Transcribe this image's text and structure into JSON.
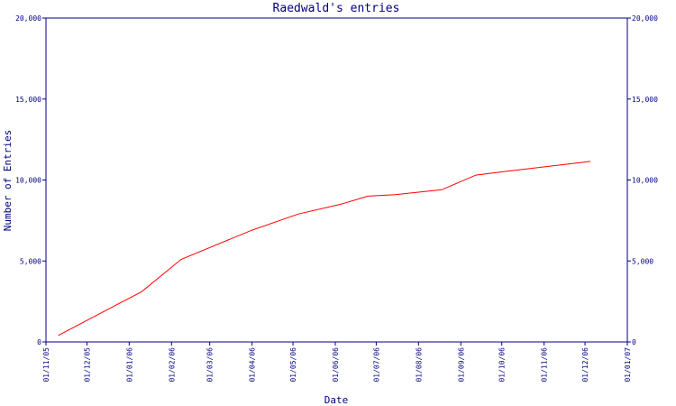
{
  "chart_data": {
    "type": "line",
    "title": "Raedwald's entries",
    "xlabel": "Date",
    "ylabel": "Number of Entries",
    "x_tick_labels": [
      "01/11/05",
      "01/12/05",
      "01/01/06",
      "01/02/06",
      "01/03/06",
      "01/04/06",
      "01/05/06",
      "01/06/06",
      "01/07/06",
      "01/08/06",
      "01/09/06",
      "01/10/06",
      "01/11/06",
      "01/12/06",
      "01/01/07"
    ],
    "y_tick_labels": [
      "0",
      "5,000",
      "10,000",
      "15,000",
      "20,000"
    ],
    "ylim": [
      0,
      20000
    ],
    "xlim": [
      "2005-11-01",
      "2007-01-01"
    ],
    "grid": false,
    "right_axis": true,
    "series": [
      {
        "color": "#ff0000",
        "points": [
          {
            "x": "2005-11-10",
            "y": 400
          },
          {
            "x": "2006-01-10",
            "y": 3100
          },
          {
            "x": "2006-02-08",
            "y": 5100
          },
          {
            "x": "2006-04-01",
            "y": 6900
          },
          {
            "x": "2006-05-05",
            "y": 7900
          },
          {
            "x": "2006-06-05",
            "y": 8500
          },
          {
            "x": "2006-06-25",
            "y": 9000
          },
          {
            "x": "2006-07-15",
            "y": 9100
          },
          {
            "x": "2006-08-18",
            "y": 9400
          },
          {
            "x": "2006-09-12",
            "y": 10300
          },
          {
            "x": "2006-10-01",
            "y": 10500
          },
          {
            "x": "2006-12-05",
            "y": 11150
          }
        ]
      }
    ]
  },
  "colors": {
    "axis": "#000080",
    "text": "#000080",
    "background": "#ffffff"
  }
}
